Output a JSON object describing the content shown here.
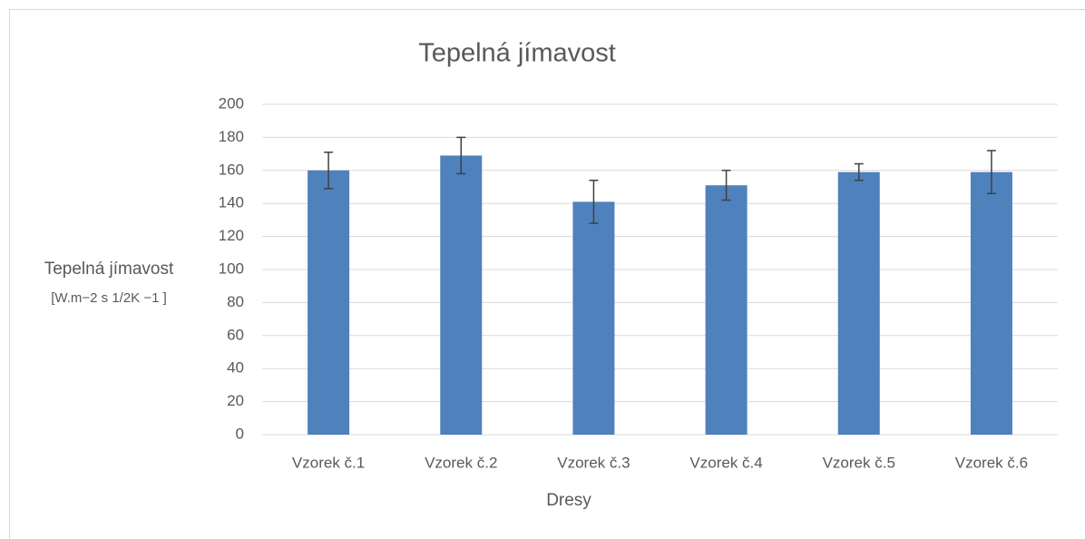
{
  "chart_data": {
    "type": "bar",
    "title": "Tepelná jímavost",
    "xlabel": "Dresy",
    "ylabel": "Tepelná jímavost",
    "ylabel_units": "[W.m−2 s 1/2K −1 ]",
    "categories": [
      "Vzorek č.1",
      "Vzorek č.2",
      "Vzorek č.3",
      "Vzorek č.4",
      "Vzorek č.5",
      "Vzorek č.6"
    ],
    "values": [
      160,
      169,
      141,
      151,
      159,
      159
    ],
    "errors": [
      11,
      11,
      13,
      9,
      5,
      13
    ],
    "color": "#4f81bd",
    "error_color": "#404040",
    "ylim": [
      0,
      200
    ],
    "yticks": [
      0,
      20,
      40,
      60,
      80,
      100,
      120,
      140,
      160,
      180,
      200
    ],
    "grid": true
  }
}
